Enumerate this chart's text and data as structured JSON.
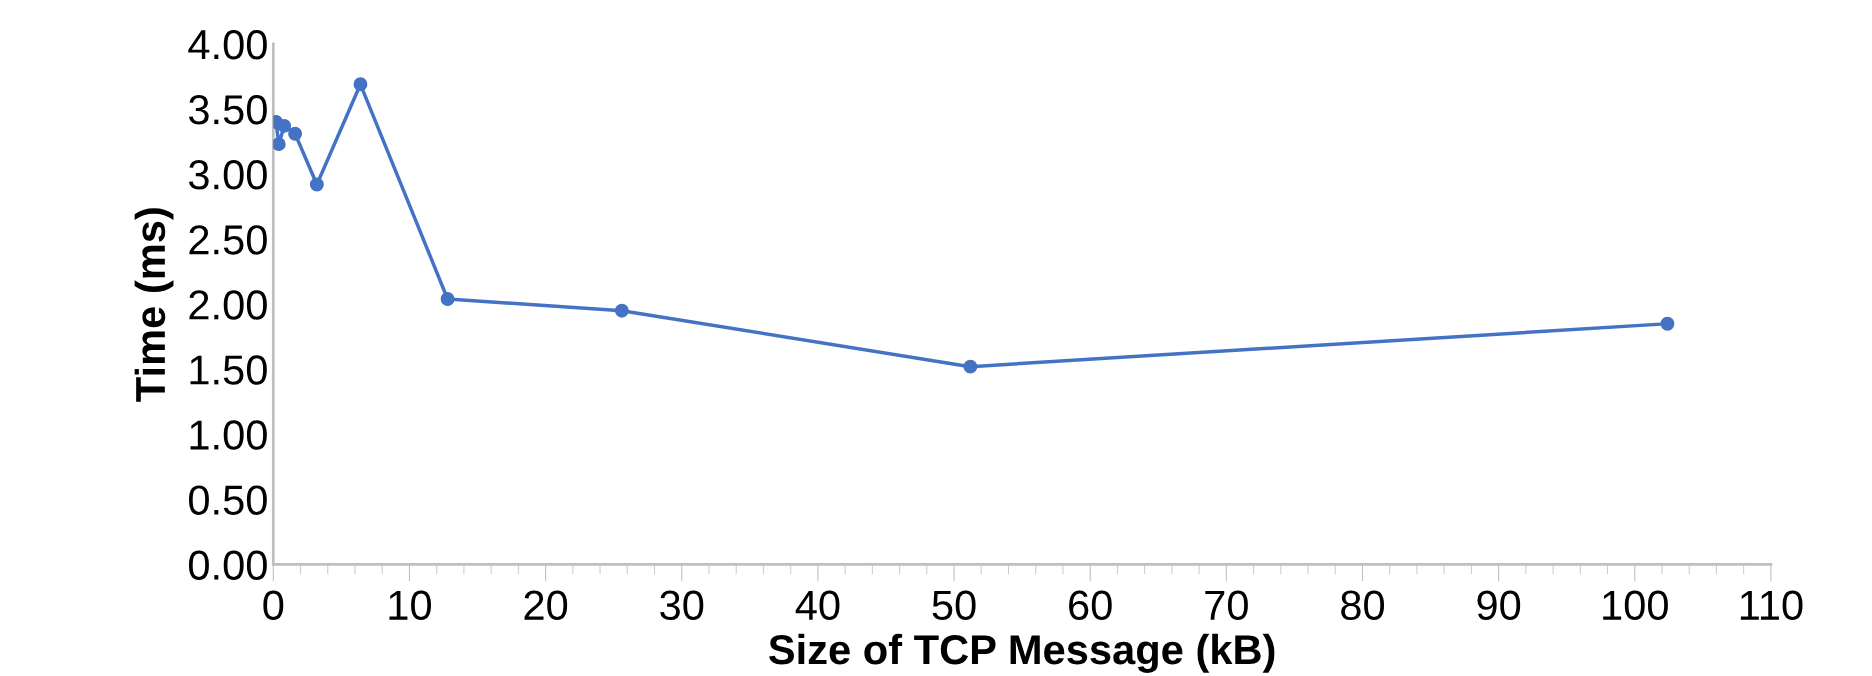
{
  "chart_data": {
    "type": "line",
    "xlabel": "Size of TCP Message (kB)",
    "ylabel": "Time (ms)",
    "x": [
      0.2,
      0.4,
      0.8,
      1.6,
      3.2,
      6.4,
      12.8,
      25.6,
      51.2,
      102.4
    ],
    "series": [
      {
        "color": "#4472c4",
        "values": [
          3.4,
          3.23,
          3.37,
          3.31,
          2.92,
          3.69,
          2.04,
          1.95,
          1.52,
          1.85
        ]
      }
    ],
    "xlim": [
      0,
      110
    ],
    "xticks": [
      0,
      10,
      20,
      30,
      40,
      50,
      60,
      70,
      80,
      90,
      100,
      110
    ],
    "ylim": [
      0,
      4
    ],
    "yticks": [
      {
        "value": 0,
        "label": "0.00"
      },
      {
        "value": 0.5,
        "label": "0.50"
      },
      {
        "value": 1,
        "label": "1.00"
      },
      {
        "value": 1.5,
        "label": "1.50"
      },
      {
        "value": 2,
        "label": "2.00"
      },
      {
        "value": 2.5,
        "label": "2.50"
      },
      {
        "value": 3,
        "label": "3.00"
      },
      {
        "value": 3.5,
        "label": "3.50"
      },
      {
        "value": 4,
        "label": "4.00"
      }
    ],
    "marker": "circle",
    "line_style": "solid",
    "grid": false,
    "legend": false
  }
}
